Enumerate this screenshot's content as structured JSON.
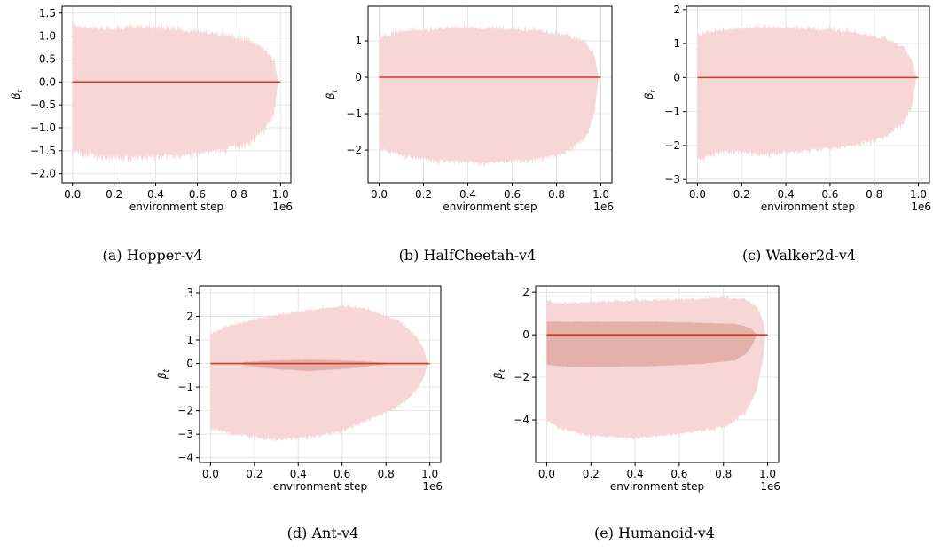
{
  "colors": {
    "line": "#d03a25",
    "band_light": "#f5d5d3",
    "band_dark": "#e2a8a2",
    "grid": "#e4e4e4"
  },
  "chart_data": [
    {
      "type": "area",
      "caption": "(a) Hopper-v4",
      "xlabel": "environment step",
      "ylabel": "β",
      "ylabel_sub": "t",
      "x_multiplier": "1e6",
      "xlim": [
        -0.05,
        1.05
      ],
      "ylim": [
        -2.2,
        1.65
      ],
      "xticks": [
        0.0,
        0.2,
        0.4,
        0.6,
        0.8,
        1.0
      ],
      "xtick_labels": [
        "0.0",
        "0.2",
        "0.4",
        "0.6",
        "0.8",
        "1.0"
      ],
      "yticks": [
        1.5,
        1.0,
        0.5,
        0.0,
        -0.5,
        -1.0,
        -1.5,
        -2.0
      ],
      "ytick_labels": [
        "1.5",
        "1.0",
        "0.5",
        "0.0",
        "−0.5",
        "−1.0",
        "−1.5",
        "−2.0"
      ],
      "grid": true,
      "line": {
        "x": [
          0.0,
          1.0
        ],
        "y": [
          0.0,
          0.0
        ]
      },
      "bands": [
        {
          "x": [
            0.0,
            0.1,
            0.3,
            0.5,
            0.7,
            0.85,
            0.93,
            0.97,
            0.99
          ],
          "upper": [
            1.2,
            1.1,
            1.15,
            1.1,
            1.0,
            0.85,
            0.65,
            0.4,
            0.0
          ],
          "lower": [
            -1.45,
            -1.55,
            -1.6,
            -1.55,
            -1.45,
            -1.25,
            -0.95,
            -0.55,
            0.0
          ],
          "style": "light"
        }
      ]
    },
    {
      "type": "area",
      "caption": "(b) HalfCheetah-v4",
      "xlabel": "environment step",
      "ylabel": "β",
      "ylabel_sub": "t",
      "x_multiplier": "1e6",
      "xlim": [
        -0.05,
        1.05
      ],
      "ylim": [
        -2.9,
        1.95
      ],
      "xticks": [
        0.0,
        0.2,
        0.4,
        0.6,
        0.8,
        1.0
      ],
      "xtick_labels": [
        "0.0",
        "0.2",
        "0.4",
        "0.6",
        "0.8",
        "1.0"
      ],
      "yticks": [
        1,
        0,
        -1,
        -2
      ],
      "ytick_labels": [
        "1",
        "0",
        "−1",
        "−2"
      ],
      "grid": true,
      "line": {
        "x": [
          0.0,
          1.0
        ],
        "y": [
          0.0,
          0.0
        ]
      },
      "bands": [
        {
          "x": [
            0.0,
            0.1,
            0.3,
            0.5,
            0.7,
            0.85,
            0.93,
            0.97,
            0.99
          ],
          "upper": [
            1.05,
            1.2,
            1.3,
            1.3,
            1.25,
            1.1,
            0.9,
            0.6,
            0.0
          ],
          "lower": [
            -1.9,
            -2.1,
            -2.25,
            -2.3,
            -2.2,
            -2.0,
            -1.6,
            -1.0,
            0.0
          ],
          "style": "light"
        }
      ]
    },
    {
      "type": "area",
      "caption": "(c) Walker2d-v4",
      "xlabel": "environment step",
      "ylabel": "β",
      "ylabel_sub": "t",
      "x_multiplier": "1e6",
      "xlim": [
        -0.05,
        1.05
      ],
      "ylim": [
        -3.1,
        2.1
      ],
      "xticks": [
        0.0,
        0.2,
        0.4,
        0.6,
        0.8,
        1.0
      ],
      "xtick_labels": [
        "0.0",
        "0.2",
        "0.4",
        "0.6",
        "0.8",
        "1.0"
      ],
      "yticks": [
        2,
        1,
        0,
        -1,
        -2,
        -3
      ],
      "ytick_labels": [
        "2",
        "1",
        "0",
        "−1",
        "−2",
        "−3"
      ],
      "grid": true,
      "line": {
        "x": [
          0.0,
          1.0
        ],
        "y": [
          0.0,
          0.0
        ]
      },
      "bands": [
        {
          "x": [
            0.0,
            0.1,
            0.3,
            0.5,
            0.7,
            0.85,
            0.93,
            0.97,
            0.99
          ],
          "upper": [
            1.2,
            1.35,
            1.45,
            1.4,
            1.3,
            1.1,
            0.85,
            0.5,
            0.0
          ],
          "lower": [
            -2.4,
            -2.1,
            -2.2,
            -2.1,
            -1.95,
            -1.7,
            -1.3,
            -0.8,
            0.0
          ],
          "style": "light"
        }
      ]
    },
    {
      "type": "area",
      "caption": "(d) Ant-v4",
      "xlabel": "environment step",
      "ylabel": "β",
      "ylabel_sub": "t",
      "x_multiplier": "1e6",
      "xlim": [
        -0.05,
        1.05
      ],
      "ylim": [
        -4.2,
        3.3
      ],
      "xticks": [
        0.0,
        0.2,
        0.4,
        0.6,
        0.8,
        1.0
      ],
      "xtick_labels": [
        "0.0",
        "0.2",
        "0.4",
        "0.6",
        "0.8",
        "1.0"
      ],
      "yticks": [
        3,
        2,
        1,
        0,
        -1,
        -2,
        -3,
        -4
      ],
      "ytick_labels": [
        "3",
        "2",
        "1",
        "0",
        "−1",
        "−2",
        "−3",
        "−4"
      ],
      "grid": true,
      "line": {
        "x": [
          0.0,
          1.0
        ],
        "y": [
          0.0,
          0.0
        ]
      },
      "bands": [
        {
          "x": [
            0.0,
            0.1,
            0.3,
            0.5,
            0.6,
            0.7,
            0.85,
            0.93,
            0.97,
            0.99
          ],
          "upper": [
            1.2,
            1.6,
            2.0,
            2.3,
            2.4,
            2.3,
            1.8,
            1.2,
            0.6,
            0.0
          ],
          "lower": [
            -2.7,
            -2.9,
            -3.2,
            -3.0,
            -2.8,
            -2.4,
            -1.8,
            -1.2,
            -0.6,
            0.0
          ],
          "style": "light"
        },
        {
          "x": [
            0.15,
            0.3,
            0.45,
            0.6,
            0.7,
            0.8
          ],
          "upper": [
            0.05,
            0.12,
            0.15,
            0.12,
            0.08,
            0.02
          ],
          "lower": [
            -0.05,
            -0.22,
            -0.3,
            -0.22,
            -0.12,
            -0.02
          ],
          "style": "dark"
        }
      ]
    },
    {
      "type": "area",
      "caption": "(e) Humanoid-v4",
      "xlabel": "environment step",
      "ylabel": "β",
      "ylabel_sub": "t",
      "x_multiplier": "1e6",
      "xlim": [
        -0.05,
        1.05
      ],
      "ylim": [
        -6.0,
        2.3
      ],
      "xticks": [
        0.0,
        0.2,
        0.4,
        0.6,
        0.8,
        1.0
      ],
      "xtick_labels": [
        "0.0",
        "0.2",
        "0.4",
        "0.6",
        "0.8",
        "1.0"
      ],
      "yticks": [
        2,
        0,
        -2,
        -4
      ],
      "ytick_labels": [
        "2",
        "0",
        "−2",
        "−4"
      ],
      "grid": true,
      "line": {
        "x": [
          0.0,
          1.0
        ],
        "y": [
          0.0,
          0.0
        ]
      },
      "bands": [
        {
          "x": [
            0.0,
            0.05,
            0.2,
            0.4,
            0.6,
            0.8,
            0.9,
            0.95,
            0.98,
            0.99
          ],
          "upper": [
            1.6,
            1.4,
            1.5,
            1.55,
            1.6,
            1.7,
            1.6,
            1.3,
            0.6,
            0.0
          ],
          "lower": [
            -3.9,
            -4.3,
            -4.7,
            -4.8,
            -4.6,
            -4.3,
            -3.6,
            -2.6,
            -1.0,
            0.0
          ],
          "style": "light"
        },
        {
          "x": [
            0.0,
            0.1,
            0.3,
            0.5,
            0.7,
            0.85,
            0.9,
            0.93,
            0.95
          ],
          "upper": [
            0.6,
            0.6,
            0.6,
            0.6,
            0.55,
            0.5,
            0.4,
            0.25,
            0.0
          ],
          "lower": [
            -1.4,
            -1.5,
            -1.5,
            -1.45,
            -1.35,
            -1.2,
            -0.9,
            -0.5,
            0.0
          ],
          "style": "dark"
        }
      ]
    }
  ]
}
